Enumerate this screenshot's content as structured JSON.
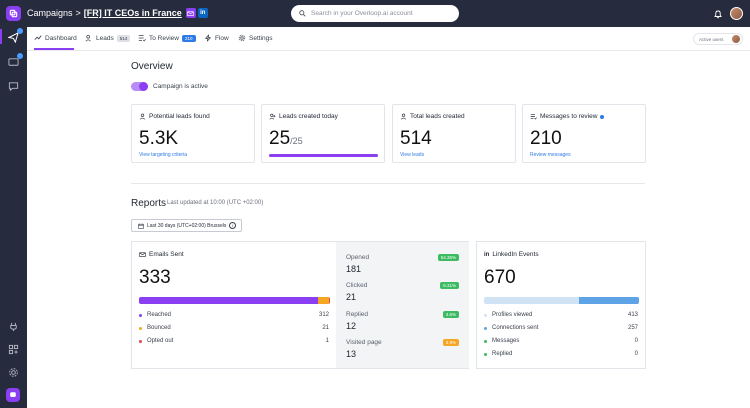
{
  "colors": {
    "accent": "#8a3ff3",
    "sidebar_bg": "#262b3d",
    "link": "#2f7be6",
    "reached": "#8a3ff3",
    "bounced": "#f5a623",
    "opted_out": "#e54848",
    "linkedin_light": "#cfe3f5",
    "linkedin_dark": "#5ea3e6",
    "pill_green": "#3dbb62",
    "pill_orange": "#f5a623"
  },
  "header": {
    "breadcrumb_root": "Campaigns",
    "breadcrumb_sep": ">",
    "campaign_name": "[FR] IT CEOs in France",
    "linkedin_badge": "in",
    "search_placeholder": "Search in your Overloop.ai account"
  },
  "tabs": {
    "dashboard": "Dashboard",
    "leads": "Leads",
    "leads_count": "514",
    "to_review": "To Review",
    "to_review_count": "210",
    "flow": "Flow",
    "settings": "Settings",
    "active_users": "Active users"
  },
  "overview": {
    "title": "Overview",
    "toggle_label": "Campaign is active",
    "campaign_active": true,
    "cards": [
      {
        "title": "Potential leads found",
        "value": "5.3K",
        "link": "View targeting criteria"
      },
      {
        "title": "Leads created today",
        "value": "25",
        "sub": "/25",
        "progress": 1.0
      },
      {
        "title": "Total leads created",
        "value": "514",
        "link": "View leads"
      },
      {
        "title": "Messages to review",
        "value": "210",
        "link": "Review messages"
      }
    ]
  },
  "reports": {
    "title": "Reports",
    "updated": "Last updated at 10:00 (UTC +02:00)",
    "range": "Last 30 days (UTC+02:00) Brussels",
    "range_info": "i"
  },
  "emails": {
    "title": "Emails Sent",
    "total": "333",
    "rows": [
      {
        "label": "Reached",
        "value": "312"
      },
      {
        "label": "Bounced",
        "value": "21"
      },
      {
        "label": "Opted out",
        "value": "1"
      }
    ],
    "bar_shares": [
      0.935,
      0.06,
      0.005
    ]
  },
  "engagement": [
    {
      "label": "Opened",
      "value": "181",
      "pct": "54.35%",
      "color": "#3dbb62"
    },
    {
      "label": "Clicked",
      "value": "21",
      "pct": "6.31%",
      "color": "#3dbb62"
    },
    {
      "label": "Replied",
      "value": "12",
      "pct": "3.6%",
      "color": "#3dbb62"
    },
    {
      "label": "Visited page",
      "value": "13",
      "pct": "3.9%",
      "color": "#f5a623"
    }
  ],
  "linkedin": {
    "title": "LinkedIn Events",
    "icon": "in",
    "total": "670",
    "bar_shares": [
      0.616,
      0.384
    ],
    "rows": [
      {
        "label": "Profiles viewed",
        "value": "413"
      },
      {
        "label": "Connections sent",
        "value": "257"
      },
      {
        "label": "Messages",
        "value": "0"
      },
      {
        "label": "Replied",
        "value": "0"
      }
    ]
  }
}
